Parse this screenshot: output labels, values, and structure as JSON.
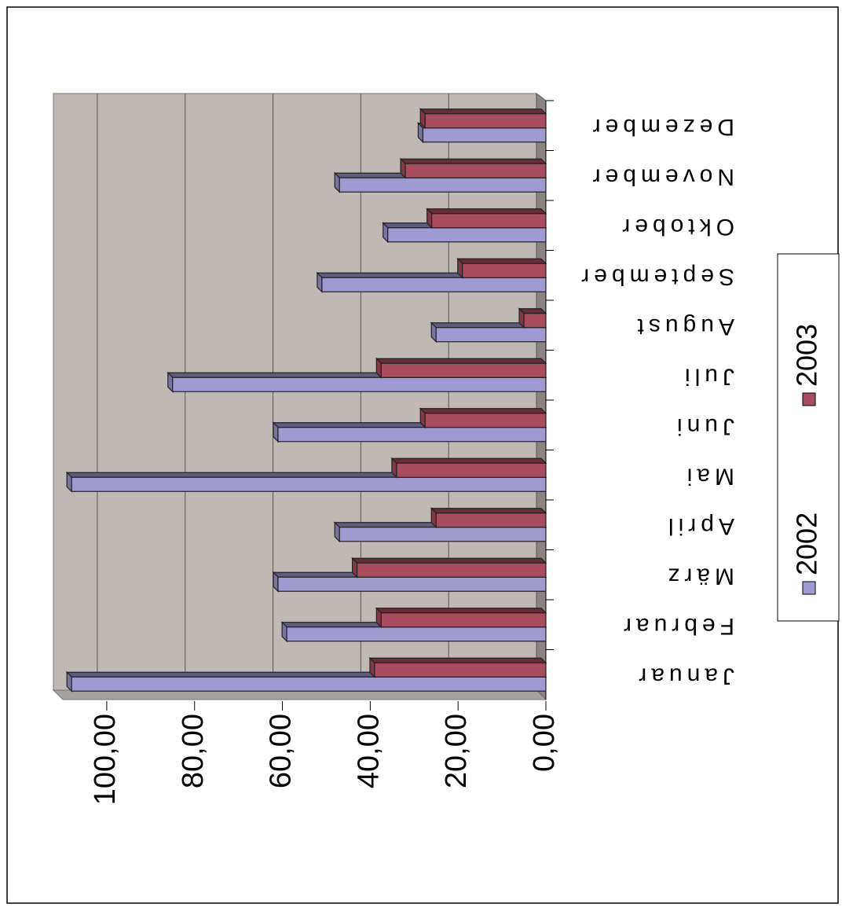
{
  "chart_data": {
    "type": "bar",
    "orientation": "horizontal",
    "categories": [
      "Januar",
      "Februar",
      "März",
      "April",
      "Mai",
      "Juni",
      "Juli",
      "August",
      "September",
      "Oktober",
      "November",
      "Dezember"
    ],
    "series": [
      {
        "name": "2002",
        "color": "#9f9bd2",
        "values": [
          108,
          59,
          61,
          47,
          108,
          61,
          85,
          25,
          51,
          36,
          47,
          28
        ]
      },
      {
        "name": "2003",
        "color": "#a94c5e",
        "values": [
          39,
          37.5,
          43,
          25,
          34,
          27.5,
          37.5,
          5,
          19,
          26,
          32,
          27.5
        ]
      }
    ],
    "xlim": [
      0,
      110
    ],
    "xticks": [
      {
        "value": 0,
        "label": "0,00"
      },
      {
        "value": 20,
        "label": "20,00"
      },
      {
        "value": 40,
        "label": "40,00"
      },
      {
        "value": 60,
        "label": "60,00"
      },
      {
        "value": 80,
        "label": "80,00"
      },
      {
        "value": 100,
        "label": "100,00"
      }
    ],
    "grid": true,
    "legend": "right"
  }
}
